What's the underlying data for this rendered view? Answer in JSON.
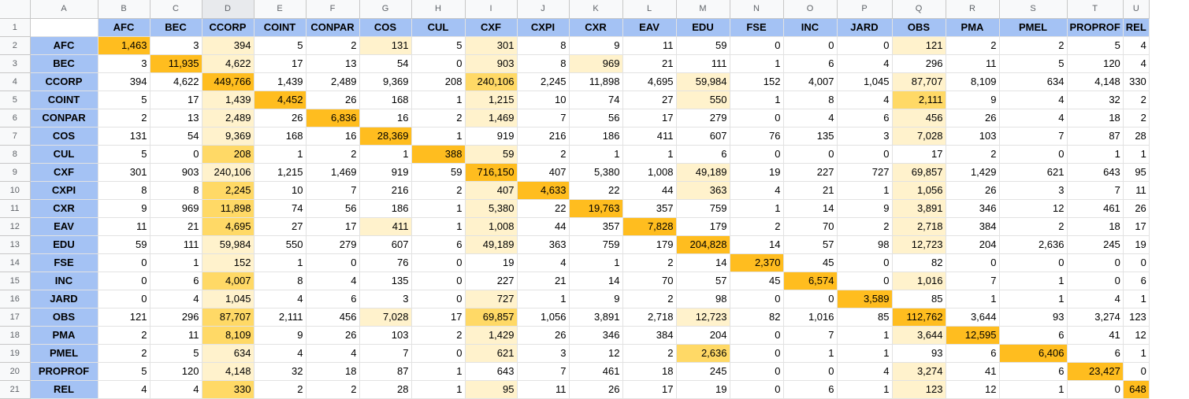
{
  "column_letters": [
    "A",
    "B",
    "C",
    "D",
    "E",
    "F",
    "G",
    "H",
    "I",
    "J",
    "K",
    "L",
    "M",
    "N",
    "O",
    "P",
    "Q",
    "R",
    "S",
    "T",
    "U"
  ],
  "selected_column": "D",
  "labels": [
    "AFC",
    "BEC",
    "CCORP",
    "COINT",
    "CONPAR",
    "COS",
    "CUL",
    "CXF",
    "CXPI",
    "CXR",
    "EAV",
    "EDU",
    "FSE",
    "INC",
    "JARD",
    "OBS",
    "PMA",
    "PMEL",
    "PROPROF",
    "REL"
  ],
  "rows": [
    {
      "num": "1",
      "label": "",
      "cells": [
        "AFC",
        "BEC",
        "CCORP",
        "COINT",
        "CONPAR",
        "COS",
        "CUL",
        "CXF",
        "CXPI",
        "CXR",
        "EAV",
        "EDU",
        "FSE",
        "INC",
        "JARD",
        "OBS",
        "PMA",
        "PMEL",
        "PROPROF",
        "REL"
      ]
    },
    {
      "num": "2",
      "label": "AFC",
      "cells": [
        "1,463",
        "3",
        "394",
        "5",
        "2",
        "131",
        "5",
        "301",
        "8",
        "9",
        "11",
        "59",
        "0",
        "0",
        "0",
        "121",
        "2",
        "2",
        "5",
        "4"
      ]
    },
    {
      "num": "3",
      "label": "BEC",
      "cells": [
        "3",
        "11,935",
        "4,622",
        "17",
        "13",
        "54",
        "0",
        "903",
        "8",
        "969",
        "21",
        "111",
        "1",
        "6",
        "4",
        "296",
        "11",
        "5",
        "120",
        "4"
      ]
    },
    {
      "num": "4",
      "label": "CCORP",
      "cells": [
        "394",
        "4,622",
        "449,766",
        "1,439",
        "2,489",
        "9,369",
        "208",
        "240,106",
        "2,245",
        "11,898",
        "4,695",
        "59,984",
        "152",
        "4,007",
        "1,045",
        "87,707",
        "8,109",
        "634",
        "4,148",
        "330"
      ]
    },
    {
      "num": "5",
      "label": "COINT",
      "cells": [
        "5",
        "17",
        "1,439",
        "4,452",
        "26",
        "168",
        "1",
        "1,215",
        "10",
        "74",
        "27",
        "550",
        "1",
        "8",
        "4",
        "2,111",
        "9",
        "4",
        "32",
        "2"
      ]
    },
    {
      "num": "6",
      "label": "CONPAR",
      "cells": [
        "2",
        "13",
        "2,489",
        "26",
        "6,836",
        "16",
        "2",
        "1,469",
        "7",
        "56",
        "17",
        "279",
        "0",
        "4",
        "6",
        "456",
        "26",
        "4",
        "18",
        "2"
      ]
    },
    {
      "num": "7",
      "label": "COS",
      "cells": [
        "131",
        "54",
        "9,369",
        "168",
        "16",
        "28,369",
        "1",
        "919",
        "216",
        "186",
        "411",
        "607",
        "76",
        "135",
        "3",
        "7,028",
        "103",
        "7",
        "87",
        "28"
      ]
    },
    {
      "num": "8",
      "label": "CUL",
      "cells": [
        "5",
        "0",
        "208",
        "1",
        "2",
        "1",
        "388",
        "59",
        "2",
        "1",
        "1",
        "6",
        "0",
        "0",
        "0",
        "17",
        "2",
        "0",
        "1",
        "1"
      ]
    },
    {
      "num": "9",
      "label": "CXF",
      "cells": [
        "301",
        "903",
        "240,106",
        "1,215",
        "1,469",
        "919",
        "59",
        "716,150",
        "407",
        "5,380",
        "1,008",
        "49,189",
        "19",
        "227",
        "727",
        "69,857",
        "1,429",
        "621",
        "643",
        "95"
      ]
    },
    {
      "num": "10",
      "label": "CXPI",
      "cells": [
        "8",
        "8",
        "2,245",
        "10",
        "7",
        "216",
        "2",
        "407",
        "4,633",
        "22",
        "44",
        "363",
        "4",
        "21",
        "1",
        "1,056",
        "26",
        "3",
        "7",
        "11"
      ]
    },
    {
      "num": "11",
      "label": "CXR",
      "cells": [
        "9",
        "969",
        "11,898",
        "74",
        "56",
        "186",
        "1",
        "5,380",
        "22",
        "19,763",
        "357",
        "759",
        "1",
        "14",
        "9",
        "3,891",
        "346",
        "12",
        "461",
        "26"
      ]
    },
    {
      "num": "12",
      "label": "EAV",
      "cells": [
        "11",
        "21",
        "4,695",
        "27",
        "17",
        "411",
        "1",
        "1,008",
        "44",
        "357",
        "7,828",
        "179",
        "2",
        "70",
        "2",
        "2,718",
        "384",
        "2",
        "18",
        "17"
      ]
    },
    {
      "num": "13",
      "label": "EDU",
      "cells": [
        "59",
        "111",
        "59,984",
        "550",
        "279",
        "607",
        "6",
        "49,189",
        "363",
        "759",
        "179",
        "204,828",
        "14",
        "57",
        "98",
        "12,723",
        "204",
        "2,636",
        "245",
        "19"
      ]
    },
    {
      "num": "14",
      "label": "FSE",
      "cells": [
        "0",
        "1",
        "152",
        "1",
        "0",
        "76",
        "0",
        "19",
        "4",
        "1",
        "2",
        "14",
        "2,370",
        "45",
        "0",
        "82",
        "0",
        "0",
        "0",
        "0"
      ]
    },
    {
      "num": "15",
      "label": "INC",
      "cells": [
        "0",
        "6",
        "4,007",
        "8",
        "4",
        "135",
        "0",
        "227",
        "21",
        "14",
        "70",
        "57",
        "45",
        "6,574",
        "0",
        "1,016",
        "7",
        "1",
        "0",
        "6"
      ]
    },
    {
      "num": "16",
      "label": "JARD",
      "cells": [
        "0",
        "4",
        "1,045",
        "4",
        "6",
        "3",
        "0",
        "727",
        "1",
        "9",
        "2",
        "98",
        "0",
        "0",
        "3,589",
        "85",
        "1",
        "1",
        "4",
        "1"
      ]
    },
    {
      "num": "17",
      "label": "OBS",
      "cells": [
        "121",
        "296",
        "87,707",
        "2,111",
        "456",
        "7,028",
        "17",
        "69,857",
        "1,056",
        "3,891",
        "2,718",
        "12,723",
        "82",
        "1,016",
        "85",
        "112,762",
        "3,644",
        "93",
        "3,274",
        "123"
      ]
    },
    {
      "num": "18",
      "label": "PMA",
      "cells": [
        "2",
        "11",
        "8,109",
        "9",
        "26",
        "103",
        "2",
        "1,429",
        "26",
        "346",
        "384",
        "204",
        "0",
        "7",
        "1",
        "3,644",
        "12,595",
        "6",
        "41",
        "12"
      ]
    },
    {
      "num": "19",
      "label": "PMEL",
      "cells": [
        "2",
        "5",
        "634",
        "4",
        "4",
        "7",
        "0",
        "621",
        "3",
        "12",
        "2",
        "2,636",
        "0",
        "1",
        "1",
        "93",
        "6",
        "6,406",
        "6",
        "1"
      ]
    },
    {
      "num": "20",
      "label": "PROPROF",
      "cells": [
        "5",
        "120",
        "4,148",
        "32",
        "18",
        "87",
        "1",
        "643",
        "7",
        "461",
        "18",
        "245",
        "0",
        "0",
        "4",
        "3,274",
        "41",
        "6",
        "23,427",
        "0"
      ]
    },
    {
      "num": "21",
      "label": "REL",
      "cells": [
        "4",
        "4",
        "330",
        "2",
        "2",
        "28",
        "1",
        "95",
        "11",
        "26",
        "17",
        "19",
        "0",
        "6",
        "1",
        "123",
        "12",
        "1",
        "0",
        "648"
      ]
    }
  ],
  "colors": {
    "header_fill": "#a4c2f4",
    "diagonal_fill": "#ffbd1f",
    "heat_strong": "#ffd966",
    "heat_light": "#fff2cc",
    "gridline": "#e2e2e2",
    "header_bg": "#f8f9fa"
  }
}
